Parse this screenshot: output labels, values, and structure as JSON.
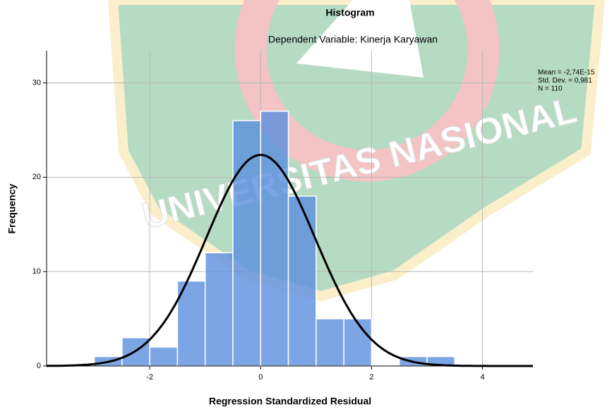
{
  "chart_data": {
    "type": "histogram",
    "title": "Histogram",
    "subtitle": "Dependent Variable: Kinerja Karyawan",
    "x_label": "Regression Standardized Residual",
    "y_label": "Frequency",
    "watermark": "UNIVERSITAS NASIONAL",
    "bins": [
      -3,
      -2.5,
      -2,
      -1.5,
      -1,
      -0.5,
      0,
      0.5,
      1,
      1.5,
      2,
      2.5,
      3,
      3.5
    ],
    "counts": [
      1,
      3,
      2,
      9,
      12,
      26,
      27,
      18,
      5,
      5,
      0,
      1,
      1
    ],
    "color": "#5b8fe0",
    "curve_color": "#000000",
    "stats": [
      {
        "value": -2.74e-15,
        "label": "Mean = -2,74E-15"
      },
      {
        "value": 0.981,
        "label": "Std. Dev. = 0,981"
      },
      {
        "value": 110,
        "label": "N = 110"
      }
    ],
    "xlim": [
      -3.86,
      4.91
    ],
    "ylim": [
      0,
      33.4
    ],
    "xticks": [
      -2,
      0,
      2,
      4
    ],
    "yticks": [
      0,
      10,
      20,
      30
    ],
    "grid": true
  }
}
